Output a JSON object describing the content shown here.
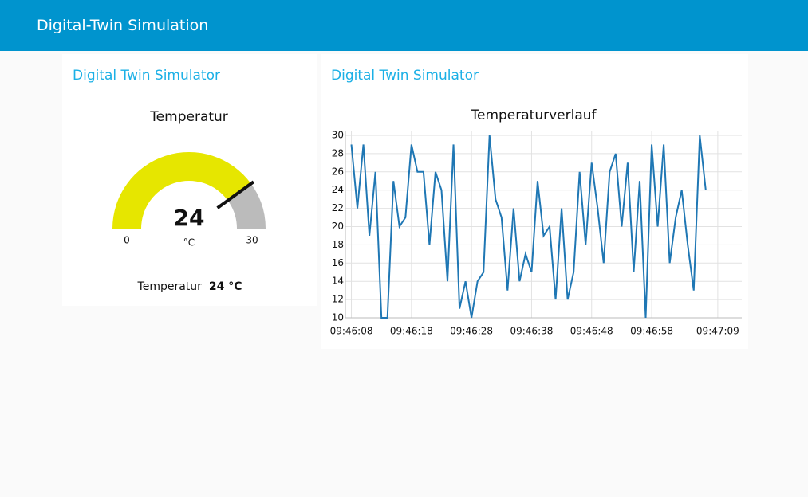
{
  "header": {
    "title": "Digital-Twin Simulation"
  },
  "gauge_card": {
    "title": "Digital Twin Simulator",
    "gauge": {
      "title": "Temperatur",
      "value": 24,
      "min": 0,
      "max": 30,
      "unit": "°C",
      "color": "#e6e600",
      "track_color": "#bbbbbb"
    },
    "text": {
      "label": "Temperatur",
      "value": 24,
      "unit": "°C"
    }
  },
  "chart_card": {
    "title": "Digital Twin Simulator"
  },
  "chart_data": {
    "type": "line",
    "title": "Temperaturverlauf",
    "x": [
      "09:46:08",
      "09:46:09",
      "09:46:10",
      "09:46:11",
      "09:46:12",
      "09:46:13",
      "09:46:14",
      "09:46:15",
      "09:46:16",
      "09:46:17",
      "09:46:18",
      "09:46:19",
      "09:46:20",
      "09:46:21",
      "09:46:22",
      "09:46:23",
      "09:46:24",
      "09:46:25",
      "09:46:26",
      "09:46:27",
      "09:46:28",
      "09:46:29",
      "09:46:30",
      "09:46:31",
      "09:46:32",
      "09:46:33",
      "09:46:34",
      "09:46:35",
      "09:46:36",
      "09:46:37",
      "09:46:38",
      "09:46:39",
      "09:46:40",
      "09:46:41",
      "09:46:42",
      "09:46:43",
      "09:46:44",
      "09:46:45",
      "09:46:46",
      "09:46:47",
      "09:46:48",
      "09:46:49",
      "09:46:50",
      "09:46:51",
      "09:46:52",
      "09:46:53",
      "09:46:54",
      "09:46:55",
      "09:46:56",
      "09:46:57",
      "09:46:58",
      "09:46:59",
      "09:47:00",
      "09:47:01",
      "09:47:02",
      "09:47:03",
      "09:47:04",
      "09:47:05",
      "09:47:06",
      "09:47:07"
    ],
    "series": [
      {
        "name": "Temperatur",
        "color": "#1f77b4",
        "values": [
          29,
          22,
          29,
          19,
          26,
          10,
          10,
          25,
          20,
          21,
          29,
          26,
          26,
          18,
          26,
          24,
          14,
          29,
          11,
          14,
          10,
          14,
          15,
          30,
          23,
          21,
          13,
          22,
          14,
          17,
          15,
          25,
          19,
          20,
          12,
          22,
          12,
          15,
          26,
          18,
          27,
          22,
          16,
          26,
          28,
          20,
          27,
          15,
          25,
          10,
          29,
          20,
          29,
          16,
          21,
          24,
          18,
          13,
          30,
          24
        ]
      }
    ],
    "xlim": [
      "09:46:07",
      "09:47:13"
    ],
    "xticks": [
      "09:46:08",
      "09:46:18",
      "09:46:28",
      "09:46:38",
      "09:46:48",
      "09:46:58",
      "09:47:09"
    ],
    "ylim": [
      10,
      30
    ],
    "yticks": [
      10,
      12,
      14,
      16,
      18,
      20,
      22,
      24,
      26,
      28,
      30
    ],
    "grid": true
  }
}
